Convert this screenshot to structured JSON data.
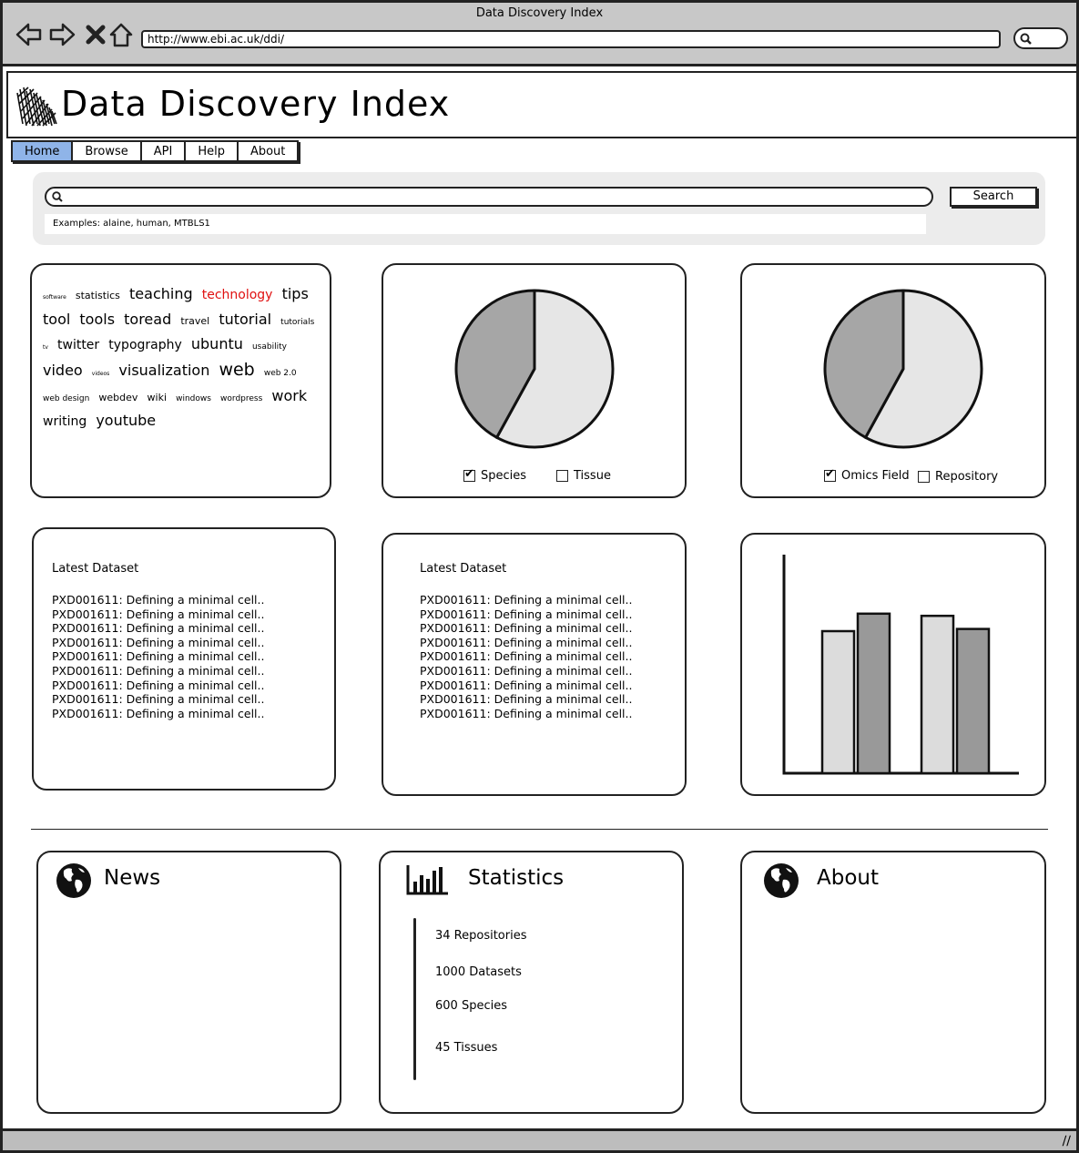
{
  "browser": {
    "title": "Data Discovery Index",
    "url": "http://www.ebi.ac.uk/ddi/"
  },
  "header": {
    "title": "Data Discovery Index"
  },
  "nav": {
    "home": "Home",
    "browse": "Browse",
    "api": "API",
    "help": "Help",
    "about": "About"
  },
  "search": {
    "button": "Search",
    "examples": "Examples: alaine, human, MTBLS1"
  },
  "cloud": [
    {
      "text": "software",
      "size": "tiny"
    },
    {
      "text": "statistics",
      "size": "s"
    },
    {
      "text": "teaching",
      "size": "l"
    },
    {
      "text": "technology",
      "size": "m",
      "color": "#e01010"
    },
    {
      "text": "tips",
      "size": "l"
    },
    {
      "text": "tool",
      "size": "l"
    },
    {
      "text": "tools",
      "size": "l"
    },
    {
      "text": "toread",
      "size": "l"
    },
    {
      "text": "travel",
      "size": "s"
    },
    {
      "text": "tutorial",
      "size": "l"
    },
    {
      "text": "tutorials",
      "size": "xs"
    },
    {
      "text": "tv",
      "size": "tiny"
    },
    {
      "text": "twitter",
      "size": "m"
    },
    {
      "text": "typography",
      "size": "m"
    },
    {
      "text": "ubuntu",
      "size": "l"
    },
    {
      "text": "usability",
      "size": "xs"
    },
    {
      "text": "video",
      "size": "l"
    },
    {
      "text": "videos",
      "size": "tiny"
    },
    {
      "text": "visualization",
      "size": "l"
    },
    {
      "text": "web",
      "size": "xl"
    },
    {
      "text": "web 2.0",
      "size": "xs"
    },
    {
      "text": "web design",
      "size": "xs"
    },
    {
      "text": "webdev",
      "size": "s"
    },
    {
      "text": "wiki",
      "size": "s"
    },
    {
      "text": "windows",
      "size": "xs"
    },
    {
      "text": "wordpress",
      "size": "xs"
    },
    {
      "text": "work",
      "size": "l"
    },
    {
      "text": "writing",
      "size": "m"
    },
    {
      "text": "youtube",
      "size": "l"
    }
  ],
  "pie1": {
    "legend": {
      "a": "Species",
      "b": "Tissue"
    },
    "checked_a": true,
    "checked_b": false
  },
  "pie2": {
    "legend": {
      "a": "Omics Field",
      "b": "Repository"
    },
    "checked_a": true,
    "checked_b": false
  },
  "latest1": {
    "title": "Latest Dataset",
    "items": [
      "PXD001611: Defining a minimal cell..",
      "PXD001611: Defining a minimal cell..",
      "PXD001611: Defining a minimal cell..",
      "PXD001611: Defining a minimal cell..",
      "PXD001611: Defining a minimal cell..",
      "PXD001611: Defining a minimal cell..",
      "PXD001611: Defining a minimal cell..",
      "PXD001611: Defining a minimal cell..",
      "PXD001611: Defining a minimal cell.."
    ]
  },
  "latest2": {
    "title": "Latest Dataset",
    "items": [
      "PXD001611: Defining a minimal cell..",
      "PXD001611: Defining a minimal cell..",
      "PXD001611: Defining a minimal cell..",
      "PXD001611: Defining a minimal cell..",
      "PXD001611: Defining a minimal cell..",
      "PXD001611: Defining a minimal cell..",
      "PXD001611: Defining a minimal cell..",
      "PXD001611: Defining a minimal cell..",
      "PXD001611: Defining a minimal cell.."
    ]
  },
  "chart_data": [
    {
      "type": "pie",
      "slices": [
        {
          "label": "Species",
          "value": 58,
          "color": "#e6e6e6"
        },
        {
          "label": "Tissue",
          "value": 42,
          "color": "#a6a6a6"
        }
      ]
    },
    {
      "type": "pie",
      "slices": [
        {
          "label": "Omics Field",
          "value": 58,
          "color": "#e6e6e6"
        },
        {
          "label": "Repository",
          "value": 42,
          "color": "#a6a6a6"
        }
      ]
    },
    {
      "type": "bar",
      "categories": [
        "",
        ""
      ],
      "series": [
        {
          "values": [
            65,
            72
          ],
          "color": "#dcdcdc"
        },
        {
          "values": [
            73,
            66
          ],
          "color": "#999999"
        }
      ],
      "ylim": [
        0,
        100
      ]
    }
  ],
  "news": {
    "title": "News"
  },
  "statistics": {
    "title": "Statistics",
    "repositories": "34 Repositories",
    "datasets": "1000 Datasets",
    "species": "600 Species",
    "tissues": "45 Tissues"
  },
  "about": {
    "title": "About"
  }
}
